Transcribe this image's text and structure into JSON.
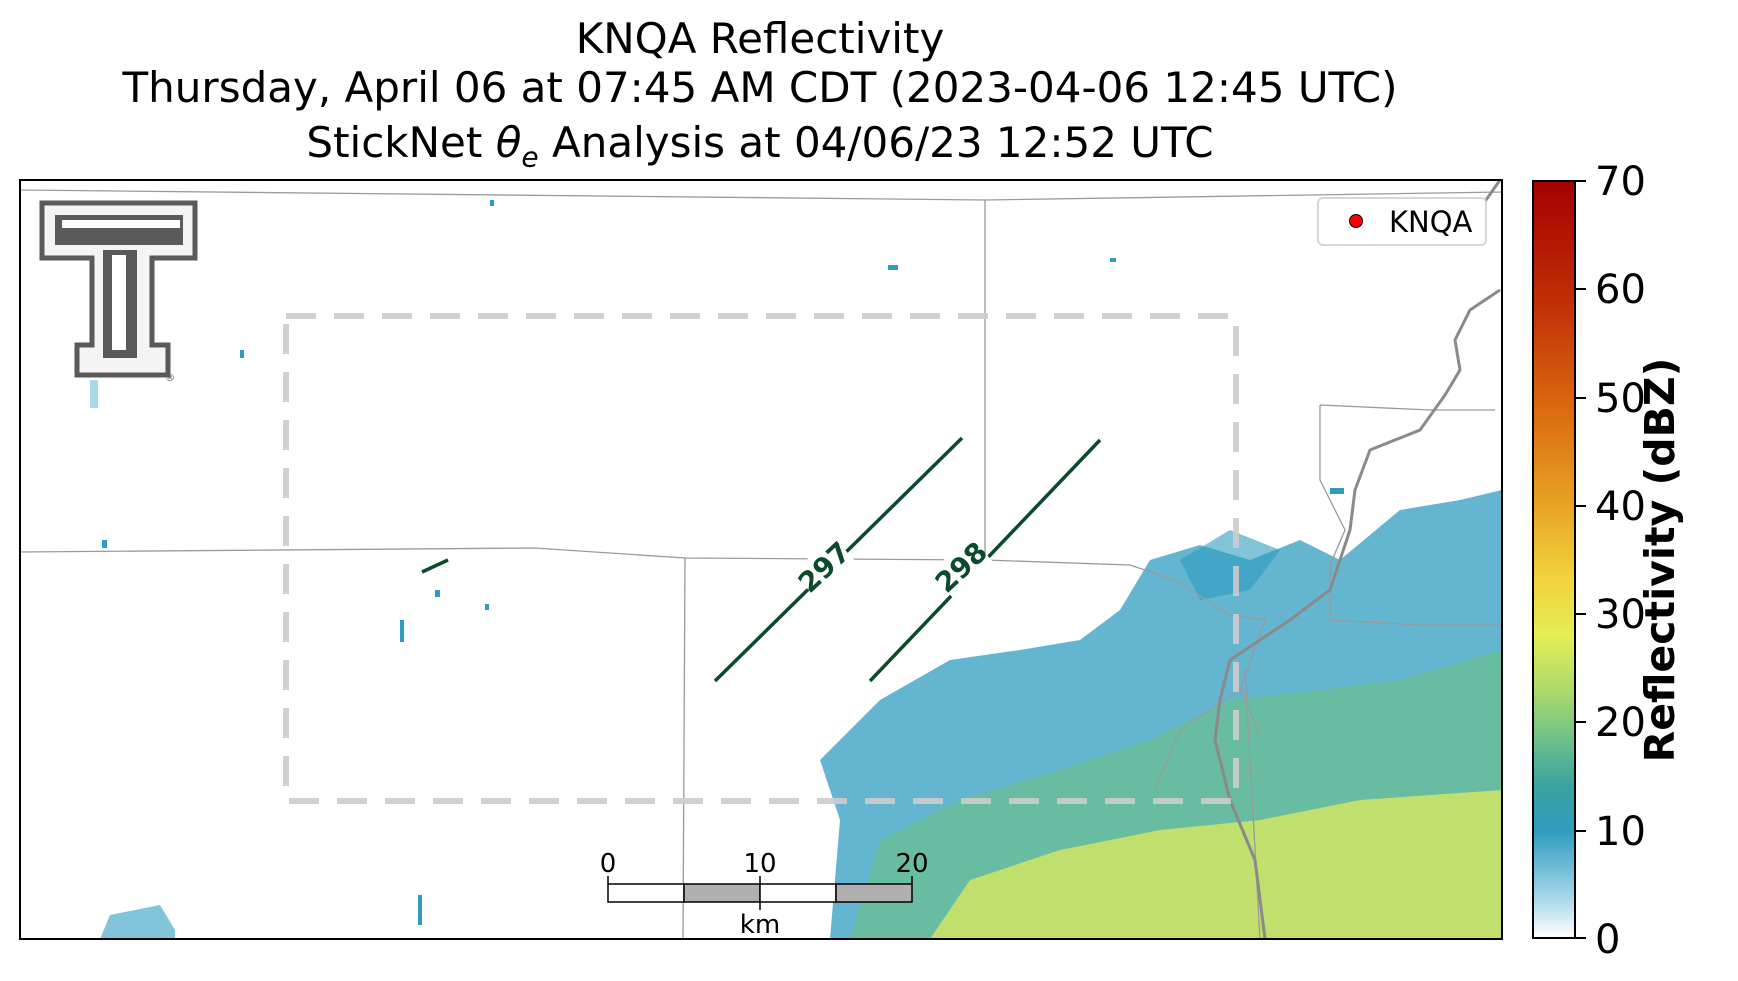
{
  "title": {
    "line1": "KNQA Reflectivity",
    "line2": "Thursday, April 06 at 07:45 AM CDT (2023-04-06 12:45 UTC)",
    "line3_prefix": "StickNet ",
    "line3_symbol": "θ",
    "line3_subscript": "e",
    "line3_suffix": " Analysis at 04/06/23 12:52 UTC"
  },
  "legend": {
    "label": "KNQA",
    "marker_color": "#ff0000"
  },
  "logo": {
    "icon": "texas-tech-double-t-logo",
    "color": "#5a5a5a"
  },
  "contours": [
    {
      "label": "297",
      "color": "#0b4a2a"
    },
    {
      "label": "298",
      "color": "#0b4a2a"
    }
  ],
  "analysis_box": {
    "style": "dashed",
    "color": "#cccccc"
  },
  "scale_bar": {
    "ticks": [
      "0",
      "10",
      "20"
    ],
    "unit": "km"
  },
  "colorbar": {
    "title": "Reflectivity (dBZ)",
    "ticks": [
      "0",
      "10",
      "20",
      "30",
      "40",
      "50",
      "60",
      "70"
    ],
    "range": [
      0,
      70
    ],
    "colors": [
      "#ffffff",
      "#2f9cc0",
      "#6cc089",
      "#e5ee55",
      "#e9a325",
      "#d96a10",
      "#a50000"
    ]
  },
  "echo_colors": {
    "light": "#2f9cc0",
    "medium": "#6cc089",
    "heavy": "#e5ee55"
  }
}
